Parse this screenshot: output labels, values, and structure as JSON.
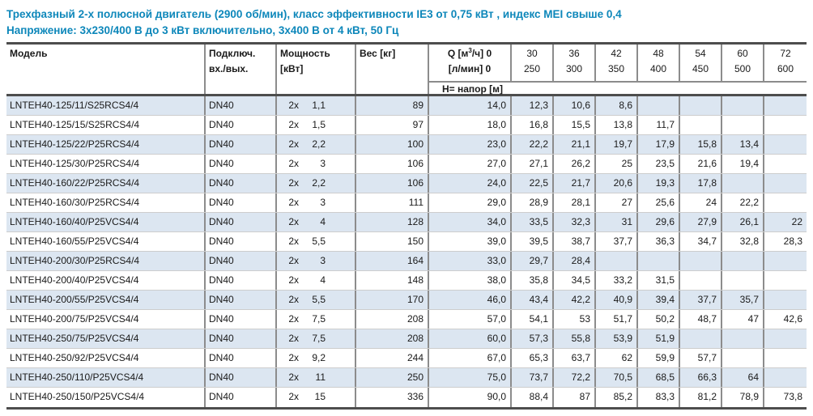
{
  "titles": {
    "line1": "Трехфазный 2-х полюсной двигатель (2900 об/мин), класс эффективности IE3 от 0,75 кВт ,  индекс MEI свыше 0,4",
    "line2": "Напряжение: 3x230/400 В до 3 кВт включительно, 3x400 В от 4 кВт, 50 Гц"
  },
  "colors": {
    "title_blue": "#0d87ba",
    "row_stripe": "#dce6f1",
    "grid_line": "#8c8c8c",
    "heavy_border": "#4d4d4d"
  },
  "table": {
    "headers": {
      "model": "Модель",
      "connection_line1": "Подключ.",
      "connection_line2": "вх./вых.",
      "power_line1": "Мощность",
      "power_line2": "[кВт]",
      "weight": "Вес [кг]",
      "q_row1_prefix": "Q [м",
      "q_row1_sup": "3",
      "q_row1_suffix": "/ч] 0",
      "q_row2": "[л/мин] 0",
      "flow_m3h": [
        "30",
        "36",
        "42",
        "48",
        "54",
        "60",
        "72"
      ],
      "flow_lmin": [
        "250",
        "300",
        "350",
        "400",
        "450",
        "500",
        "600"
      ],
      "head_label": "Н= напор [м]"
    },
    "rows": [
      {
        "model": "LNTEH40-125/11/S25RCS4/4",
        "conn": "DN40",
        "power_prefix": "2x",
        "power": "1,1",
        "weight": "89",
        "heads": [
          "14,0",
          "12,3",
          "10,6",
          "8,6",
          "",
          "",
          "",
          ""
        ]
      },
      {
        "model": "LNTEH40-125/15/S25RCS4/4",
        "conn": "DN40",
        "power_prefix": "2x",
        "power": "1,5",
        "weight": "97",
        "heads": [
          "18,0",
          "16,8",
          "15,5",
          "13,8",
          "11,7",
          "",
          "",
          ""
        ]
      },
      {
        "model": "LNTEH40-125/22/P25RCS4/4",
        "conn": "DN40",
        "power_prefix": "2x",
        "power": "2,2",
        "weight": "100",
        "heads": [
          "23,0",
          "22,2",
          "21,1",
          "19,7",
          "17,9",
          "15,8",
          "13,4",
          ""
        ]
      },
      {
        "model": "LNTEH40-125/30/P25RCS4/4",
        "conn": "DN40",
        "power_prefix": "2x",
        "power": "3",
        "weight": "106",
        "heads": [
          "27,0",
          "27,1",
          "26,2",
          "25",
          "23,5",
          "21,6",
          "19,4",
          ""
        ]
      },
      {
        "model": "LNTEH40-160/22/P25RCS4/4",
        "conn": "DN40",
        "power_prefix": "2x",
        "power": "2,2",
        "weight": "106",
        "heads": [
          "24,0",
          "22,5",
          "21,7",
          "20,6",
          "19,3",
          "17,8",
          "",
          ""
        ]
      },
      {
        "model": "LNTEH40-160/30/P25RCS4/4",
        "conn": "DN40",
        "power_prefix": "2x",
        "power": "3",
        "weight": "111",
        "heads": [
          "29,0",
          "28,9",
          "28,1",
          "27",
          "25,6",
          "24",
          "22,2",
          ""
        ]
      },
      {
        "model": "LNTEH40-160/40/P25VCS4/4",
        "conn": "DN40",
        "power_prefix": "2x",
        "power": "4",
        "weight": "128",
        "heads": [
          "34,0",
          "33,5",
          "32,3",
          "31",
          "29,6",
          "27,9",
          "26,1",
          "22"
        ]
      },
      {
        "model": "LNTEH40-160/55/P25VCS4/4",
        "conn": "DN40",
        "power_prefix": "2x",
        "power": "5,5",
        "weight": "150",
        "heads": [
          "39,0",
          "39,5",
          "38,7",
          "37,7",
          "36,3",
          "34,7",
          "32,8",
          "28,3"
        ]
      },
      {
        "model": "LNTEH40-200/30/P25RCS4/4",
        "conn": "DN40",
        "power_prefix": "2x",
        "power": "3",
        "weight": "164",
        "heads": [
          "33,0",
          "29,7",
          "28,4",
          "",
          "",
          "",
          "",
          ""
        ]
      },
      {
        "model": "LNTEH40-200/40/P25VCS4/4",
        "conn": "DN40",
        "power_prefix": "2x",
        "power": "4",
        "weight": "148",
        "heads": [
          "38,0",
          "35,8",
          "34,5",
          "33,2",
          "31,5",
          "",
          "",
          ""
        ]
      },
      {
        "model": "LNTEH40-200/55/P25VCS4/4",
        "conn": "DN40",
        "power_prefix": "2x",
        "power": "5,5",
        "weight": "170",
        "heads": [
          "46,0",
          "43,4",
          "42,2",
          "40,9",
          "39,4",
          "37,7",
          "35,7",
          ""
        ]
      },
      {
        "model": "LNTEH40-200/75/P25VCS4/4",
        "conn": "DN40",
        "power_prefix": "2x",
        "power": "7,5",
        "weight": "208",
        "heads": [
          "57,0",
          "54,1",
          "53",
          "51,7",
          "50,2",
          "48,7",
          "47",
          "42,6"
        ]
      },
      {
        "model": "LNTEH40-250/75/P25VCS4/4",
        "conn": "DN40",
        "power_prefix": "2x",
        "power": "7,5",
        "weight": "208",
        "heads": [
          "60,0",
          "57,3",
          "55,8",
          "53,9",
          "51,9",
          "",
          "",
          ""
        ]
      },
      {
        "model": "LNTEH40-250/92/P25VCS4/4",
        "conn": "DN40",
        "power_prefix": "2x",
        "power": "9,2",
        "weight": "244",
        "heads": [
          "67,0",
          "65,3",
          "63,7",
          "62",
          "59,9",
          "57,7",
          "",
          ""
        ]
      },
      {
        "model": "LNTEH40-250/110/P25VCS4/4",
        "conn": "DN40",
        "power_prefix": "2x",
        "power": "11",
        "weight": "250",
        "heads": [
          "75,0",
          "73,7",
          "72,2",
          "70,5",
          "68,5",
          "66,3",
          "64",
          ""
        ]
      },
      {
        "model": "LNTEH40-250/150/P25VCS4/4",
        "conn": "DN40",
        "power_prefix": "2x",
        "power": "15",
        "weight": "336",
        "heads": [
          "90,0",
          "88,4",
          "87",
          "85,2",
          "83,3",
          "81,2",
          "78,9",
          "73,8"
        ]
      }
    ]
  }
}
